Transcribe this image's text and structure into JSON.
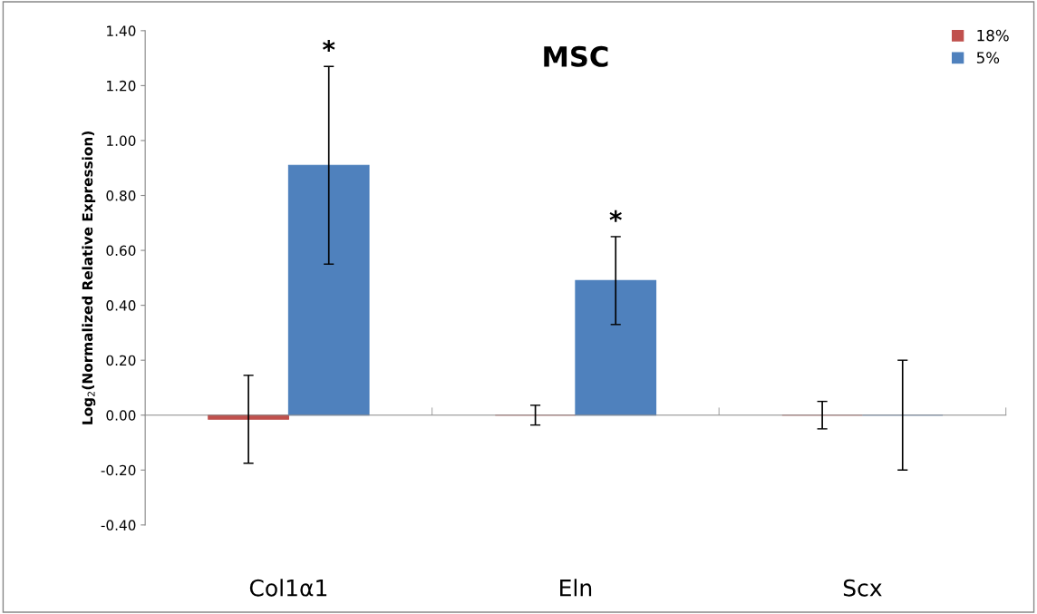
{
  "chart_data": {
    "type": "bar",
    "title": "MSC",
    "ylabel": "Log$_{2}$(Normalized Relative Expression)",
    "categories": [
      "Col1α1",
      "Eln",
      "Scx"
    ],
    "series": [
      {
        "name": "18%",
        "color": "#c0504d",
        "values": [
          -0.015,
          0,
          0
        ],
        "errors": [
          0.16,
          0.036,
          0.05
        ]
      },
      {
        "name": "5%",
        "color": "#4f81bd",
        "values": [
          0.91,
          0.49,
          0
        ],
        "errors": [
          0.36,
          0.16,
          0.2
        ]
      }
    ],
    "ylim": [
      -0.4,
      1.4
    ],
    "yticks": [
      {
        "value": -0.4,
        "label": "-0.40"
      },
      {
        "value": -0.2,
        "label": "-0.20"
      },
      {
        "value": 0,
        "label": "0.00"
      },
      {
        "value": 0.2,
        "label": "0.20"
      },
      {
        "value": 0.4,
        "label": "0.40"
      },
      {
        "value": 0.6,
        "label": "0.60"
      },
      {
        "value": 0.8,
        "label": "0.80"
      },
      {
        "value": 1.0,
        "label": "1.00"
      },
      {
        "value": 1.2,
        "label": "1.20"
      },
      {
        "value": 1.4,
        "label": "1.40"
      }
    ],
    "annotations": [
      "*",
      "*"
    ],
    "legend": "top right"
  }
}
